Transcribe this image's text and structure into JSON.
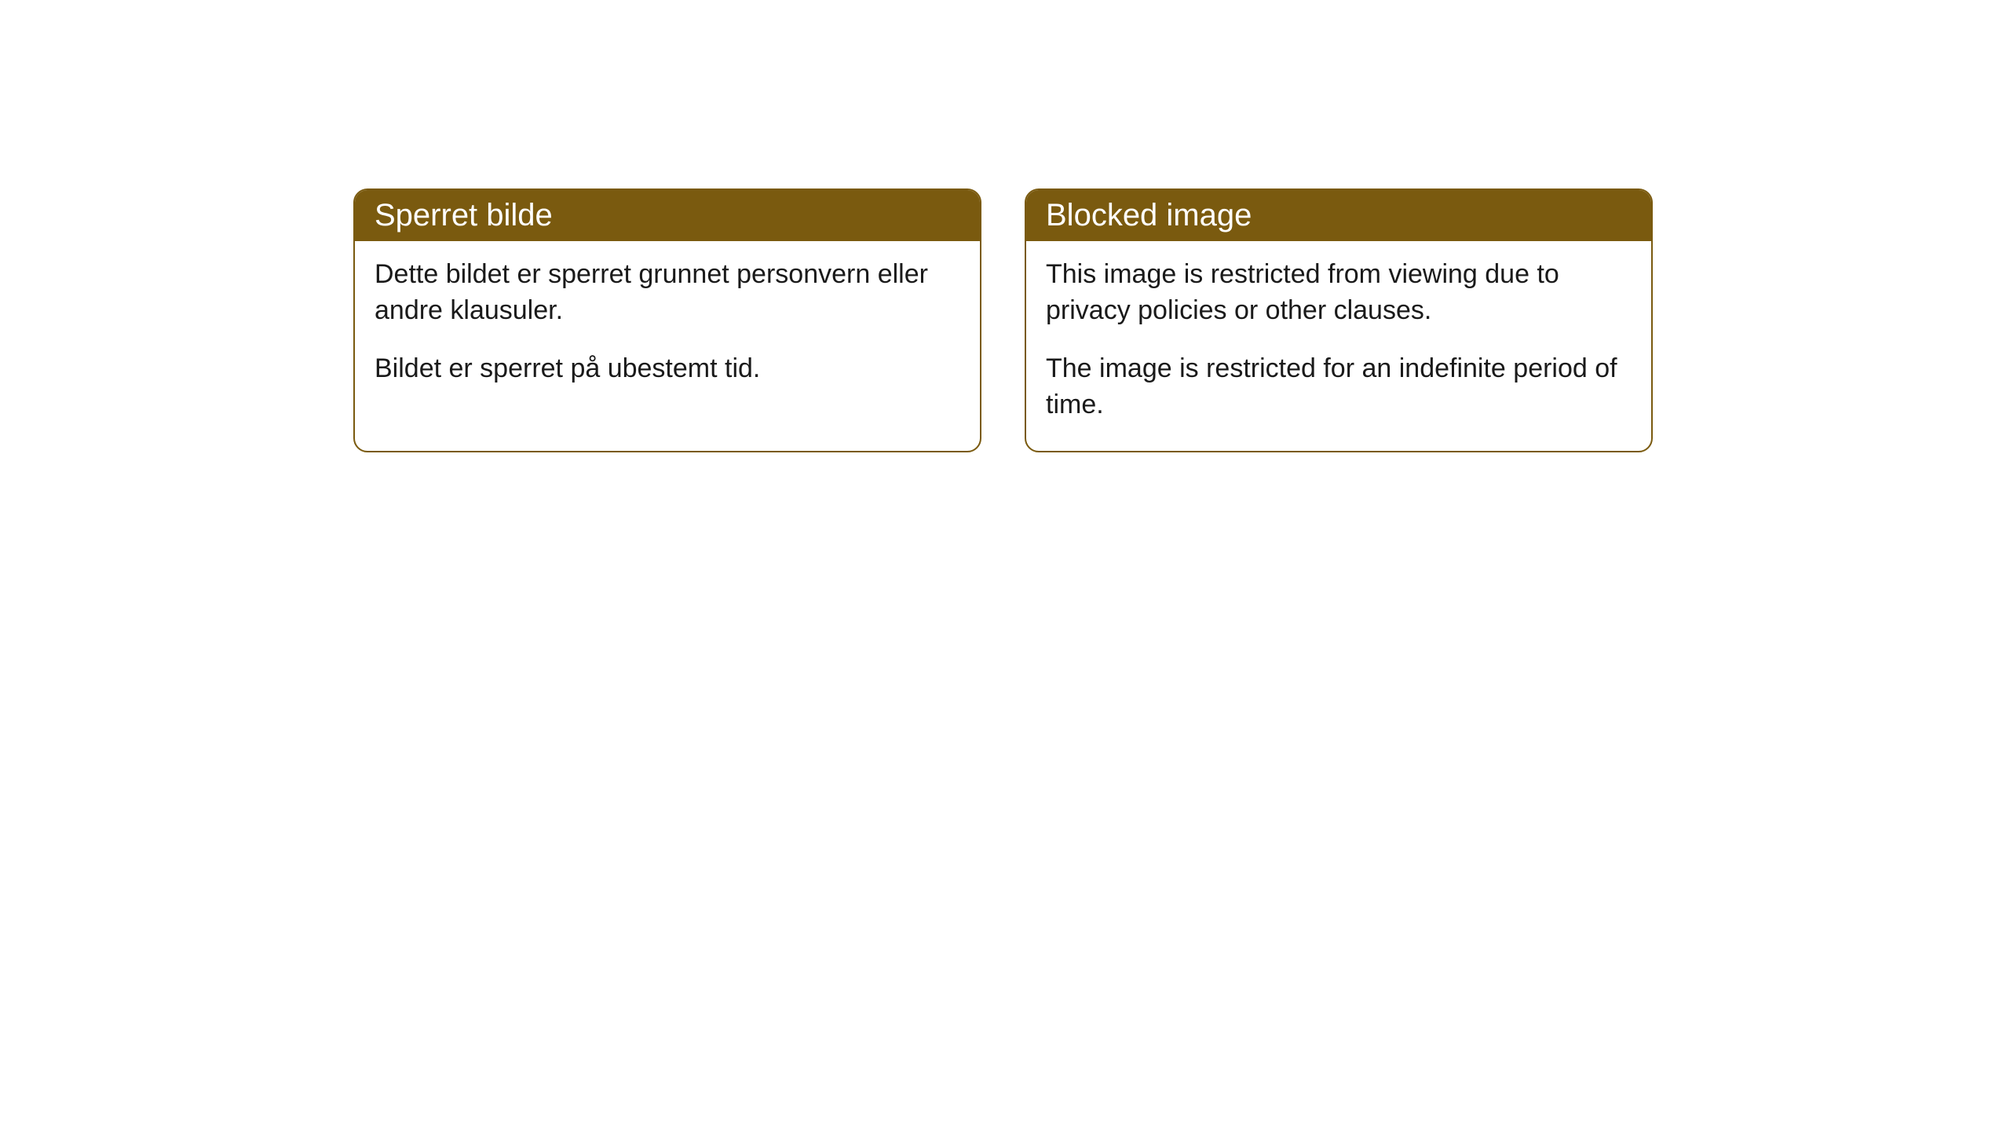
{
  "cards": [
    {
      "title": "Sperret bilde",
      "paragraph1": "Dette bildet er sperret grunnet personvern eller andre klausuler.",
      "paragraph2": "Bildet er sperret på ubestemt tid."
    },
    {
      "title": "Blocked image",
      "paragraph1": "This image is restricted from viewing due to privacy policies or other clauses.",
      "paragraph2": "The image is restricted for an indefinite period of time."
    }
  ],
  "style": {
    "header_bg_color": "#7a5a0f",
    "header_text_color": "#ffffff",
    "border_color": "#7a5a0f",
    "body_bg_color": "#ffffff",
    "body_text_color": "#1a1a1a",
    "border_radius": 18,
    "header_fontsize": 40,
    "body_fontsize": 34
  }
}
